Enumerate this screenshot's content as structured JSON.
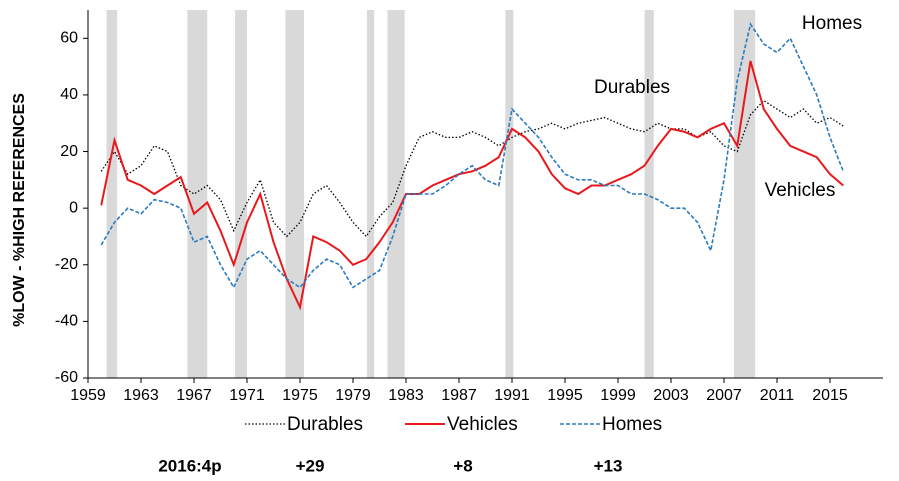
{
  "chart_data": {
    "type": "line",
    "y_label": "%LOW - %HIGH REFERENCES",
    "x": [
      1960,
      1961,
      1962,
      1963,
      1964,
      1965,
      1966,
      1967,
      1968,
      1969,
      1970,
      1971,
      1972,
      1973,
      1974,
      1975,
      1976,
      1977,
      1978,
      1979,
      1980,
      1981,
      1982,
      1983,
      1984,
      1985,
      1986,
      1987,
      1988,
      1989,
      1990,
      1991,
      1992,
      1993,
      1994,
      1995,
      1996,
      1997,
      1998,
      1999,
      2000,
      2001,
      2002,
      2003,
      2004,
      2005,
      2006,
      2007,
      2008,
      2009,
      2010,
      2011,
      2012,
      2013,
      2014,
      2015,
      2016
    ],
    "series": [
      {
        "name": "Durables",
        "color": "#000000",
        "style": "dotted",
        "values": [
          13,
          20,
          12,
          15,
          22,
          20,
          8,
          5,
          8,
          3,
          -8,
          2,
          10,
          -5,
          -10,
          -5,
          5,
          8,
          2,
          -5,
          -10,
          -3,
          2,
          15,
          25,
          27,
          25,
          25,
          27,
          25,
          22,
          25,
          27,
          28,
          30,
          28,
          30,
          31,
          32,
          30,
          28,
          27,
          30,
          28,
          28,
          25,
          27,
          22,
          20,
          33,
          38,
          35,
          32,
          35,
          30,
          32,
          29
        ]
      },
      {
        "name": "Vehicles",
        "color": "#e8191c",
        "style": "solid",
        "values": [
          1,
          24,
          10,
          8,
          5,
          8,
          11,
          -2,
          2,
          -8,
          -20,
          -5,
          5,
          -12,
          -25,
          -35,
          -10,
          -12,
          -15,
          -20,
          -18,
          -12,
          -5,
          5,
          5,
          8,
          10,
          12,
          13,
          15,
          18,
          28,
          25,
          20,
          12,
          7,
          5,
          8,
          8,
          10,
          12,
          15,
          22,
          28,
          27,
          25,
          28,
          30,
          22,
          52,
          35,
          28,
          22,
          20,
          18,
          12,
          8
        ]
      },
      {
        "name": "Homes",
        "color": "#2b7bbf",
        "style": "dashed",
        "values": [
          -13,
          -5,
          0,
          -2,
          3,
          2,
          0,
          -12,
          -10,
          -20,
          -28,
          -18,
          -15,
          -20,
          -25,
          -28,
          -22,
          -18,
          -20,
          -28,
          -25,
          -22,
          -10,
          5,
          5,
          5,
          8,
          12,
          15,
          10,
          8,
          35,
          30,
          25,
          18,
          12,
          10,
          10,
          8,
          8,
          5,
          5,
          3,
          0,
          0,
          -5,
          -15,
          10,
          45,
          65,
          58,
          55,
          60,
          50,
          40,
          25,
          13
        ]
      }
    ],
    "shaded_periods": [
      [
        1960.4,
        1961.2
      ],
      [
        1966.5,
        1968.0
      ],
      [
        1970.1,
        1971.0
      ],
      [
        1973.9,
        1975.3
      ],
      [
        1980.05,
        1980.6
      ],
      [
        1981.6,
        1982.9
      ],
      [
        1990.5,
        1991.1
      ],
      [
        2001.0,
        2001.7
      ],
      [
        2007.75,
        2009.35
      ]
    ],
    "xlim": [
      1959,
      2019
    ],
    "xticks": [
      1959,
      1963,
      1967,
      1971,
      1975,
      1979,
      1983,
      1987,
      1991,
      1995,
      1999,
      2003,
      2007,
      2011,
      2015
    ],
    "ylim": [
      -60,
      70
    ],
    "yticks": [
      -60,
      -40,
      -20,
      0,
      20,
      40,
      60
    ],
    "annotations": [
      "Durables",
      "Vehicles",
      "Homes"
    ],
    "footer": [
      "2016:4p",
      "+29",
      "+8",
      "+13"
    ]
  }
}
